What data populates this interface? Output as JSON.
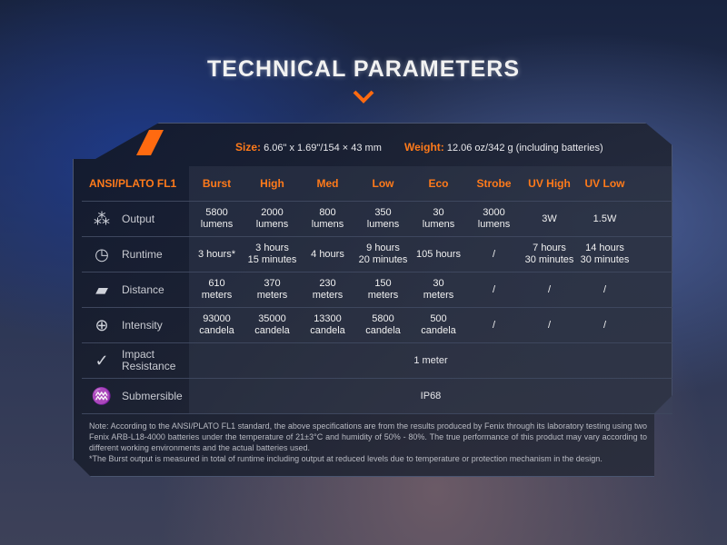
{
  "title": "TECHNICAL PARAMETERS",
  "accent": "#ff7a1a",
  "size": {
    "label": "Size:",
    "value": "6.06\" x 1.69\"/154 × 43 mm"
  },
  "weight": {
    "label": "Weight:",
    "value": "12.06 oz/342 g (including batteries)"
  },
  "table": {
    "header": "ANSI/PLATO FL1",
    "columns": [
      "Burst",
      "High",
      "Med",
      "Low",
      "Eco",
      "Strobe",
      "UV High",
      "UV Low"
    ],
    "rows": [
      {
        "label": "Output",
        "icon": "burst-light-icon",
        "cells": [
          [
            "5800",
            "lumens"
          ],
          [
            "2000",
            "lumens"
          ],
          [
            "800",
            "lumens"
          ],
          [
            "350",
            "lumens"
          ],
          [
            "30",
            "lumens"
          ],
          [
            "3000",
            "lumens"
          ],
          [
            "3W"
          ],
          [
            "1.5W"
          ]
        ]
      },
      {
        "label": "Runtime",
        "icon": "clock-icon",
        "cells": [
          [
            "3 hours*"
          ],
          [
            "3 hours",
            "15 minutes"
          ],
          [
            "4 hours"
          ],
          [
            "9 hours",
            "20 minutes"
          ],
          [
            "105 hours"
          ],
          [
            "/"
          ],
          [
            "7 hours",
            "30 minutes"
          ],
          [
            "14 hours",
            "30 minutes"
          ]
        ]
      },
      {
        "label": "Distance",
        "icon": "distance-beam-icon",
        "cells": [
          [
            "610",
            "meters"
          ],
          [
            "370",
            "meters"
          ],
          [
            "230",
            "meters"
          ],
          [
            "150",
            "meters"
          ],
          [
            "30",
            "meters"
          ],
          [
            "/"
          ],
          [
            "/"
          ],
          [
            "/"
          ]
        ]
      },
      {
        "label": "Intensity",
        "icon": "target-icon",
        "cells": [
          [
            "93000",
            "candela"
          ],
          [
            "35000",
            "candela"
          ],
          [
            "13300",
            "candela"
          ],
          [
            "5800",
            "candela"
          ],
          [
            "500",
            "candela"
          ],
          [
            "/"
          ],
          [
            "/"
          ],
          [
            "/"
          ]
        ]
      }
    ],
    "impact": {
      "label": "Impact\nResistance",
      "icon": "impact-icon",
      "value": "1 meter"
    },
    "submersible": {
      "label": "Submersible",
      "icon": "water-splash-icon",
      "value": "IP68"
    }
  },
  "note": "Note: According to the ANSI/PLATO FL1 standard, the above specifications are from the results produced by Fenix through its laboratory testing using two Fenix ARB-L18-4000 batteries under the temperature of 21±3°C and humidity of 50% - 80%. The true performance of this product may vary according to different working environments and the actual batteries used.",
  "footnote": "*The Burst output is measured in total of runtime including output at reduced levels due to temperature or protection mechanism in the design."
}
